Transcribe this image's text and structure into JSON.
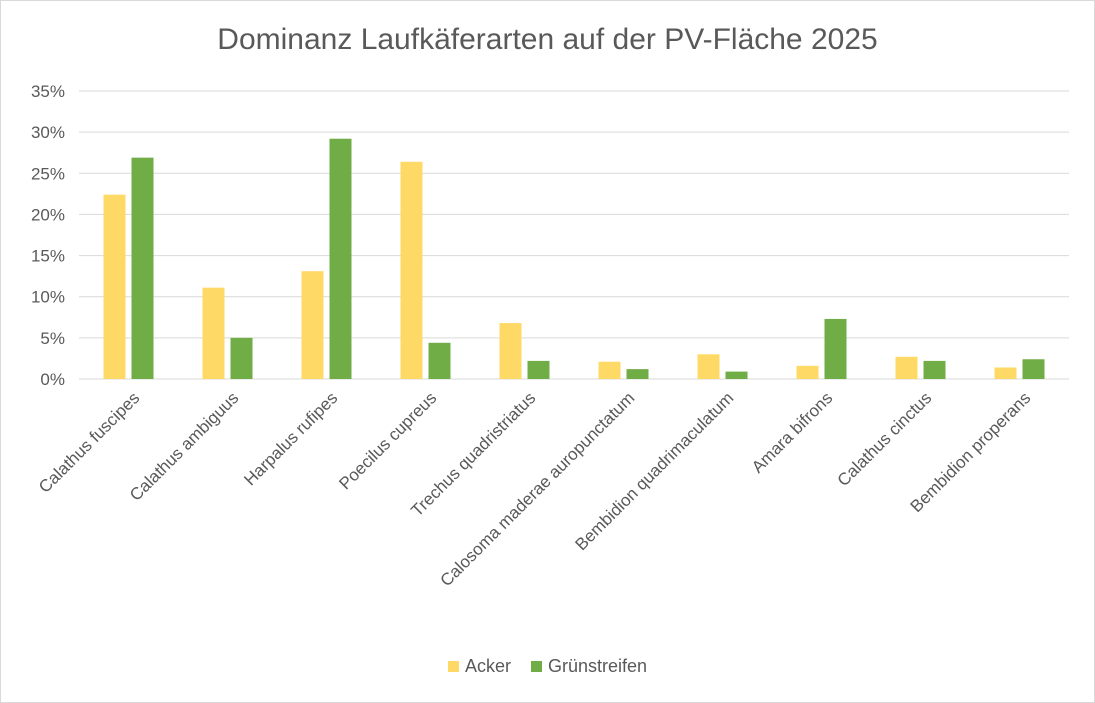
{
  "chart_data": {
    "type": "bar",
    "title": "Dominanz Laufkäferarten auf der PV-Fläche 2025",
    "xlabel": "",
    "ylabel": "",
    "ylim": [
      0,
      0.35
    ],
    "y_ticks": [
      "0%",
      "5%",
      "10%",
      "15%",
      "20%",
      "25%",
      "30%",
      "35%"
    ],
    "y_tick_values": [
      0,
      0.05,
      0.1,
      0.15,
      0.2,
      0.25,
      0.3,
      0.35
    ],
    "grid": "horizontal",
    "legend_position": "bottom",
    "categories": [
      "Calathus fuscipes",
      "Calathus ambiguus",
      "Harpalus rufipes",
      "Poecilus cupreus",
      "Trechus quadristriatus",
      "Calosoma maderae auropunctatum",
      "Bembidion quadrimaculatum",
      "Amara bifrons",
      "Calathus cinctus",
      "Bembidion properans"
    ],
    "series": [
      {
        "name": "Acker",
        "color": "#FFD966",
        "values": [
          0.224,
          0.111,
          0.131,
          0.264,
          0.068,
          0.021,
          0.03,
          0.016,
          0.027,
          0.014
        ]
      },
      {
        "name": "Grünstreifen",
        "color": "#70AD47",
        "values": [
          0.269,
          0.05,
          0.292,
          0.044,
          0.022,
          0.012,
          0.009,
          0.073,
          0.022,
          0.024
        ]
      }
    ]
  }
}
